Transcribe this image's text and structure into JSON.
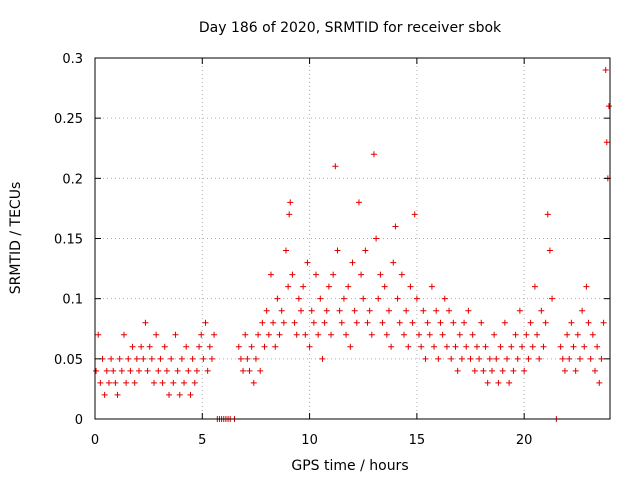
{
  "chart_data": {
    "type": "scatter",
    "title": "Day 186 of 2020, SRMTID for receiver sbok",
    "xlabel": "GPS time / hours",
    "ylabel": "SRMTID / TECUs",
    "xlim": [
      0,
      24
    ],
    "ylim": [
      0,
      0.3
    ],
    "xticks": [
      0,
      5,
      10,
      15,
      20
    ],
    "xtick_labels": [
      "0",
      "5",
      "10",
      "15",
      "20"
    ],
    "yticks": [
      0,
      0.05,
      0.1,
      0.15,
      0.2,
      0.25,
      0.3
    ],
    "ytick_labels": [
      "0",
      "0.05",
      "0.1",
      "0.15",
      "0.2",
      "0.25",
      "0.3"
    ],
    "grid": true,
    "marker": "+",
    "color": "#e00000",
    "series": [
      {
        "name": "SRMTID",
        "x": [
          0.05,
          0.15,
          0.25,
          0.35,
          0.45,
          0.55,
          0.65,
          0.75,
          0.85,
          0.95,
          1.05,
          1.15,
          1.25,
          1.35,
          1.45,
          1.55,
          1.65,
          1.75,
          1.85,
          1.95,
          2.05,
          2.15,
          2.25,
          2.35,
          2.45,
          2.55,
          2.65,
          2.75,
          2.85,
          2.95,
          3.05,
          3.15,
          3.25,
          3.35,
          3.45,
          3.55,
          3.65,
          3.75,
          3.85,
          3.95,
          4.05,
          4.15,
          4.25,
          4.35,
          4.45,
          4.55,
          4.65,
          4.75,
          4.85,
          4.95,
          5.05,
          5.15,
          5.25,
          5.35,
          5.45,
          5.55,
          5.7,
          5.8,
          5.9,
          6.0,
          6.1,
          6.2,
          6.3,
          6.5,
          6.7,
          6.8,
          6.9,
          7.0,
          7.1,
          7.2,
          7.3,
          7.4,
          7.5,
          7.6,
          7.7,
          7.8,
          7.9,
          8.0,
          8.1,
          8.2,
          8.3,
          8.4,
          8.5,
          8.6,
          8.7,
          8.8,
          8.9,
          9.0,
          9.05,
          9.1,
          9.2,
          9.3,
          9.4,
          9.5,
          9.6,
          9.7,
          9.8,
          9.9,
          10.0,
          10.1,
          10.2,
          10.3,
          10.4,
          10.5,
          10.6,
          10.7,
          10.8,
          10.9,
          11.0,
          11.1,
          11.2,
          11.3,
          11.4,
          11.5,
          11.6,
          11.7,
          11.8,
          11.9,
          12.0,
          12.1,
          12.2,
          12.3,
          12.4,
          12.5,
          12.6,
          12.7,
          12.8,
          12.9,
          13.0,
          13.1,
          13.2,
          13.3,
          13.4,
          13.5,
          13.6,
          13.7,
          13.8,
          13.9,
          14.0,
          14.1,
          14.2,
          14.3,
          14.4,
          14.5,
          14.6,
          14.7,
          14.8,
          14.9,
          15.0,
          15.1,
          15.2,
          15.3,
          15.4,
          15.5,
          15.6,
          15.7,
          15.8,
          15.9,
          16.0,
          16.1,
          16.2,
          16.3,
          16.4,
          16.5,
          16.6,
          16.7,
          16.8,
          16.9,
          17.0,
          17.1,
          17.2,
          17.3,
          17.4,
          17.5,
          17.6,
          17.7,
          17.8,
          17.9,
          18.0,
          18.1,
          18.2,
          18.3,
          18.4,
          18.5,
          18.6,
          18.7,
          18.8,
          18.9,
          19.0,
          19.1,
          19.2,
          19.3,
          19.4,
          19.5,
          19.6,
          19.7,
          19.8,
          19.9,
          20.0,
          20.1,
          20.2,
          20.3,
          20.4,
          20.5,
          20.6,
          20.7,
          20.8,
          20.9,
          21.0,
          21.1,
          21.2,
          21.3,
          21.5,
          21.7,
          21.8,
          21.9,
          22.0,
          22.1,
          22.2,
          22.3,
          22.4,
          22.5,
          22.6,
          22.7,
          22.8,
          22.9,
          23.0,
          23.1,
          23.2,
          23.3,
          23.4,
          23.5,
          23.6,
          23.7,
          23.8,
          23.85,
          23.9,
          23.95
        ],
        "y": [
          0.04,
          0.07,
          0.03,
          0.05,
          0.02,
          0.04,
          0.03,
          0.05,
          0.04,
          0.03,
          0.02,
          0.05,
          0.04,
          0.07,
          0.03,
          0.05,
          0.04,
          0.06,
          0.03,
          0.05,
          0.04,
          0.06,
          0.05,
          0.08,
          0.04,
          0.06,
          0.05,
          0.03,
          0.07,
          0.04,
          0.05,
          0.03,
          0.06,
          0.04,
          0.02,
          0.05,
          0.03,
          0.07,
          0.04,
          0.02,
          0.05,
          0.03,
          0.06,
          0.04,
          0.02,
          0.05,
          0.03,
          0.04,
          0.06,
          0.07,
          0.05,
          0.08,
          0.04,
          0.06,
          0.05,
          0.07,
          0.0,
          0.0,
          0.0,
          0.0,
          0.0,
          0.0,
          0.0,
          0.0,
          0.06,
          0.05,
          0.04,
          0.07,
          0.05,
          0.04,
          0.06,
          0.03,
          0.05,
          0.07,
          0.04,
          0.08,
          0.06,
          0.09,
          0.07,
          0.12,
          0.08,
          0.06,
          0.1,
          0.07,
          0.09,
          0.08,
          0.14,
          0.11,
          0.17,
          0.18,
          0.12,
          0.08,
          0.07,
          0.1,
          0.09,
          0.11,
          0.07,
          0.13,
          0.06,
          0.09,
          0.08,
          0.12,
          0.07,
          0.1,
          0.05,
          0.08,
          0.09,
          0.11,
          0.07,
          0.12,
          0.21,
          0.14,
          0.09,
          0.08,
          0.1,
          0.07,
          0.11,
          0.06,
          0.13,
          0.09,
          0.08,
          0.18,
          0.12,
          0.1,
          0.14,
          0.08,
          0.09,
          0.07,
          0.22,
          0.15,
          0.1,
          0.12,
          0.08,
          0.11,
          0.07,
          0.09,
          0.06,
          0.13,
          0.16,
          0.1,
          0.08,
          0.12,
          0.07,
          0.09,
          0.06,
          0.11,
          0.08,
          0.17,
          0.1,
          0.07,
          0.06,
          0.09,
          0.05,
          0.08,
          0.07,
          0.11,
          0.06,
          0.09,
          0.05,
          0.08,
          0.07,
          0.1,
          0.06,
          0.09,
          0.05,
          0.08,
          0.06,
          0.04,
          0.07,
          0.05,
          0.08,
          0.06,
          0.09,
          0.05,
          0.07,
          0.04,
          0.06,
          0.05,
          0.08,
          0.04,
          0.06,
          0.03,
          0.05,
          0.04,
          0.07,
          0.05,
          0.03,
          0.06,
          0.04,
          0.08,
          0.05,
          0.03,
          0.06,
          0.04,
          0.07,
          0.05,
          0.09,
          0.06,
          0.04,
          0.07,
          0.05,
          0.08,
          0.06,
          0.11,
          0.07,
          0.05,
          0.09,
          0.06,
          0.08,
          0.17,
          0.14,
          0.1,
          0.0,
          0.06,
          0.05,
          0.04,
          0.07,
          0.05,
          0.08,
          0.06,
          0.04,
          0.07,
          0.05,
          0.09,
          0.06,
          0.11,
          0.08,
          0.05,
          0.07,
          0.04,
          0.06,
          0.03,
          0.05,
          0.08,
          0.29,
          0.23,
          0.2,
          0.26
        ]
      }
    ]
  }
}
